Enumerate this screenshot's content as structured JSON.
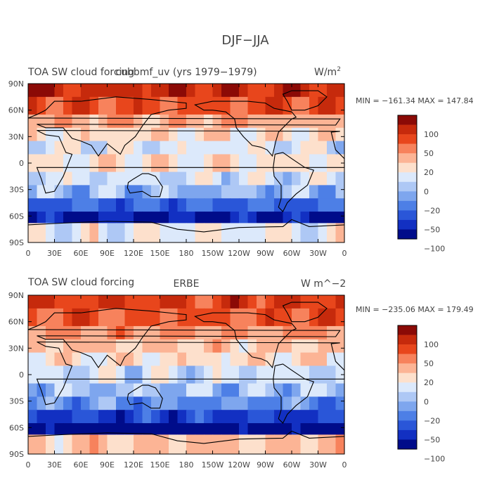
{
  "page_title": "DJF−JJA",
  "colorbar_levels": [
    "100",
    "50",
    "20",
    "0",
    "−20",
    "−50",
    "−100"
  ],
  "colorbar_colors": [
    "#8b0a06",
    "#c62a0c",
    "#e8461c",
    "#f7825c",
    "#fcb495",
    "#fde0cc",
    "#dce9fb",
    "#aec8f5",
    "#7ea6ee",
    "#4d7fe6",
    "#2a56d8",
    "#1230c2",
    "#000c8a"
  ],
  "chart_data": [
    {
      "type": "heatmap",
      "title_left": "TOA SW cloud forcing",
      "title_center": "cubbmf_uv (yrs 1979−1979)",
      "title_right": "W/m",
      "title_right_sup": "2",
      "x_tick_labels": [
        "0",
        "30E",
        "60E",
        "90E",
        "120E",
        "150E",
        "180",
        "150W",
        "120W",
        "90W",
        "60W",
        "30W",
        "0"
      ],
      "y_tick_labels": [
        "90N",
        "60N",
        "30N",
        "0",
        "30S",
        "60S",
        "90S"
      ],
      "xlim": [
        0,
        360
      ],
      "ylim": [
        -90,
        90
      ],
      "stats_text": "MIN = −161.34  MAX = 147.84",
      "min": -161.34,
      "max": 147.84,
      "zonal_bands": [
        {
          "lat_from": 90,
          "lat_to": 75,
          "value": 110
        },
        {
          "lat_from": 75,
          "lat_to": 55,
          "value": 85
        },
        {
          "lat_from": 55,
          "lat_to": 40,
          "value": 40
        },
        {
          "lat_from": 40,
          "lat_to": 25,
          "value": 10
        },
        {
          "lat_from": 25,
          "lat_to": 10,
          "value": -8
        },
        {
          "lat_from": 10,
          "lat_to": -10,
          "value": 8
        },
        {
          "lat_from": -10,
          "lat_to": -25,
          "value": -12
        },
        {
          "lat_from": -25,
          "lat_to": -40,
          "value": -35
        },
        {
          "lat_from": -40,
          "lat_to": -55,
          "value": -80
        },
        {
          "lat_from": -55,
          "lat_to": -68,
          "value": -120
        },
        {
          "lat_from": -68,
          "lat_to": -90,
          "value": -5
        }
      ]
    },
    {
      "type": "heatmap",
      "title_left": "TOA SW cloud forcing",
      "title_center": "ERBE",
      "title_right": "W m^−2",
      "title_right_sup": "",
      "x_tick_labels": [
        "0",
        "30E",
        "60E",
        "90E",
        "120E",
        "150E",
        "180",
        "150W",
        "120W",
        "90W",
        "60W",
        "30W",
        "0"
      ],
      "y_tick_labels": [
        "90N",
        "60N",
        "30N",
        "0",
        "30S",
        "60S",
        "90S"
      ],
      "xlim": [
        0,
        360
      ],
      "ylim": [
        -90,
        90
      ],
      "stats_text": "MIN = −235.06  MAX = 179.49",
      "min": -235.06,
      "max": 179.49,
      "zonal_bands": [
        {
          "lat_from": 90,
          "lat_to": 75,
          "value": 95
        },
        {
          "lat_from": 75,
          "lat_to": 55,
          "value": 80
        },
        {
          "lat_from": 55,
          "lat_to": 40,
          "value": 50
        },
        {
          "lat_from": 40,
          "lat_to": 25,
          "value": 25
        },
        {
          "lat_from": 25,
          "lat_to": 10,
          "value": 10
        },
        {
          "lat_from": 10,
          "lat_to": -10,
          "value": -15
        },
        {
          "lat_from": -10,
          "lat_to": -25,
          "value": -30
        },
        {
          "lat_from": -25,
          "lat_to": -40,
          "value": -55
        },
        {
          "lat_from": -40,
          "lat_to": -55,
          "value": -100
        },
        {
          "lat_from": -55,
          "lat_to": -68,
          "value": -140
        },
        {
          "lat_from": -68,
          "lat_to": -90,
          "value": 25
        }
      ]
    }
  ]
}
